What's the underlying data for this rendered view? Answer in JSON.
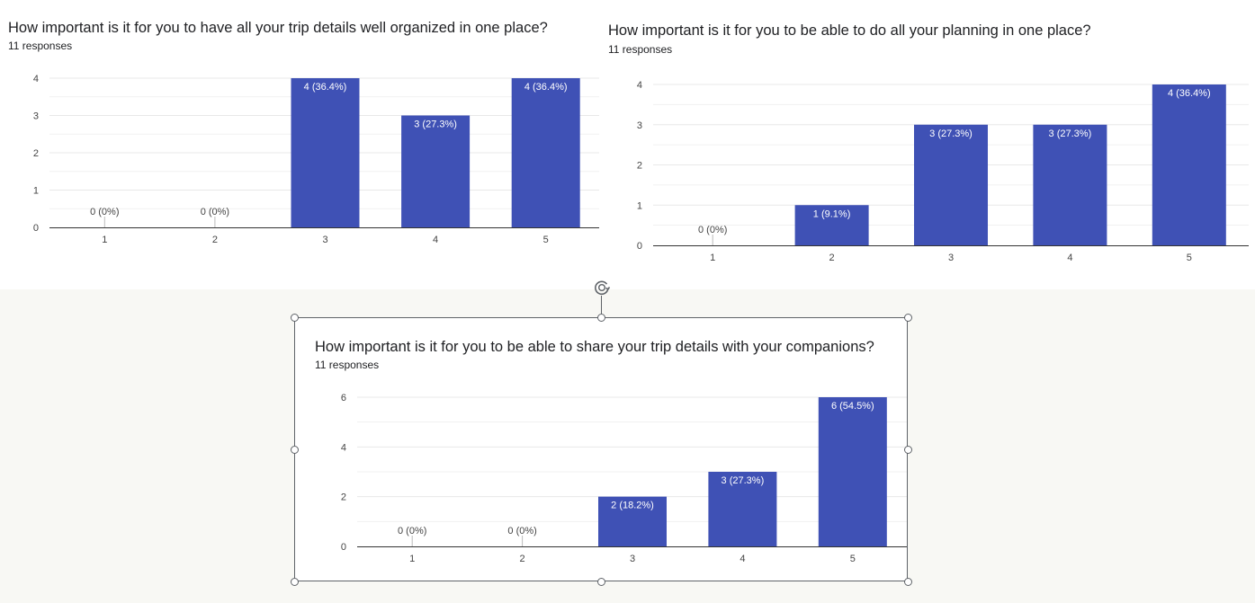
{
  "colors": {
    "bar": "#3f51b5",
    "grid": "#e8e8e8",
    "axis": "#333333",
    "background": "#f8f8f4"
  },
  "selection_icons": {
    "rotate": "rotate-handle-icon",
    "handles": "resize-handle-icon"
  },
  "charts": [
    {
      "title": "How important is it for you to have all your trip details well organized in one place?",
      "responses": "11 responses"
    },
    {
      "title": "How important is it for you to be able to do all your planning in one place?",
      "responses": "11 responses"
    },
    {
      "title": "How important is it for you to be able to share your trip details with your companions?",
      "responses": "11 responses"
    }
  ],
  "chart_data": [
    {
      "type": "bar",
      "title": "How important is it for you to have all your trip details well organized in one place?",
      "subtitle": "11 responses",
      "categories": [
        "1",
        "2",
        "3",
        "4",
        "5"
      ],
      "values": [
        0,
        0,
        4,
        3,
        4
      ],
      "data_labels": [
        "0 (0%)",
        "0 (0%)",
        "4 (36.4%)",
        "3 (27.3%)",
        "4 (36.4%)"
      ],
      "yticks": [
        0,
        1,
        2,
        3,
        4
      ],
      "ylim": [
        0,
        4
      ],
      "grid": true
    },
    {
      "type": "bar",
      "title": "How important is it for you to be able to do all your planning in one place?",
      "subtitle": "11 responses",
      "categories": [
        "1",
        "2",
        "3",
        "4",
        "5"
      ],
      "values": [
        0,
        1,
        3,
        3,
        4
      ],
      "data_labels": [
        "0 (0%)",
        "1 (9.1%)",
        "3 (27.3%)",
        "3 (27.3%)",
        "4 (36.4%)"
      ],
      "yticks": [
        0,
        1,
        2,
        3,
        4
      ],
      "ylim": [
        0,
        4
      ],
      "grid": true
    },
    {
      "type": "bar",
      "title": "How important is it for you to be able to share your trip details with your companions?",
      "subtitle": "11 responses",
      "categories": [
        "1",
        "2",
        "3",
        "4",
        "5"
      ],
      "values": [
        0,
        0,
        2,
        3,
        6
      ],
      "data_labels": [
        "0 (0%)",
        "0 (0%)",
        "2 (18.2%)",
        "3 (27.3%)",
        "6 (54.5%)"
      ],
      "yticks": [
        0,
        2,
        4,
        6
      ],
      "ylim": [
        0,
        6
      ],
      "grid": true
    }
  ]
}
